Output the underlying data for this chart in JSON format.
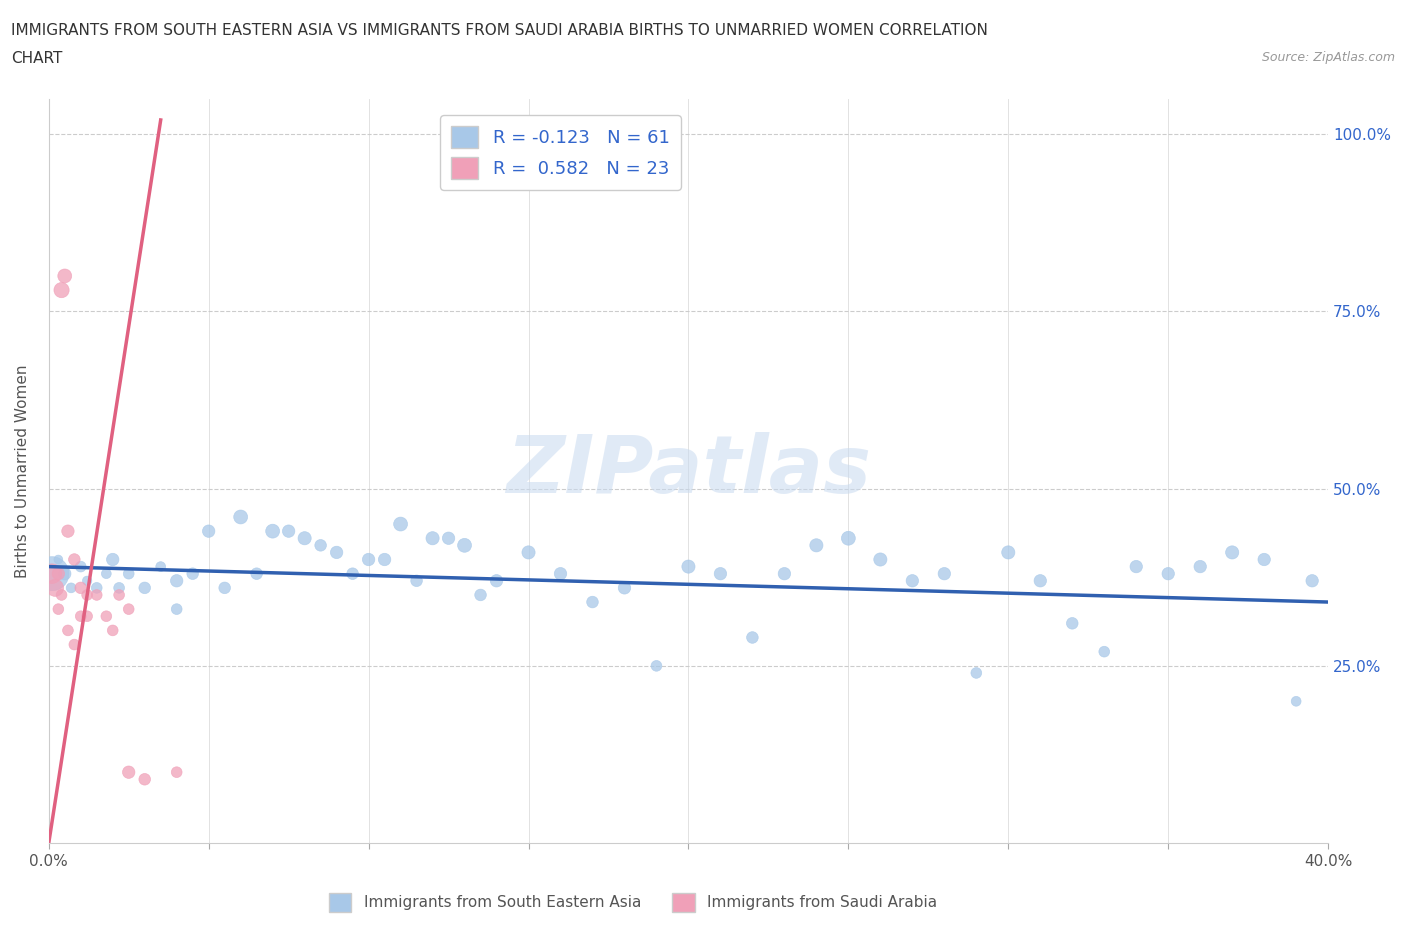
{
  "title_line1": "IMMIGRANTS FROM SOUTH EASTERN ASIA VS IMMIGRANTS FROM SAUDI ARABIA BIRTHS TO UNMARRIED WOMEN CORRELATION",
  "title_line2": "CHART",
  "source": "Source: ZipAtlas.com",
  "ylabel": "Births to Unmarried Women",
  "xlim": [
    0.0,
    0.4
  ],
  "ylim": [
    0.0,
    1.05
  ],
  "blue_color": "#a8c8e8",
  "pink_color": "#f0a0b8",
  "blue_line_color": "#3060b0",
  "pink_line_color": "#e06080",
  "watermark": "ZIPatlas",
  "blue_scatter": {
    "x": [
      0.001,
      0.003,
      0.005,
      0.007,
      0.01,
      0.012,
      0.015,
      0.018,
      0.02,
      0.022,
      0.025,
      0.03,
      0.035,
      0.04,
      0.05,
      0.06,
      0.07,
      0.08,
      0.09,
      0.1,
      0.11,
      0.12,
      0.13,
      0.14,
      0.15,
      0.16,
      0.17,
      0.18,
      0.19,
      0.2,
      0.21,
      0.22,
      0.23,
      0.24,
      0.25,
      0.26,
      0.27,
      0.28,
      0.29,
      0.3,
      0.31,
      0.32,
      0.33,
      0.34,
      0.35,
      0.36,
      0.37,
      0.38,
      0.39,
      0.395,
      0.04,
      0.045,
      0.055,
      0.065,
      0.075,
      0.085,
      0.095,
      0.105,
      0.115,
      0.125,
      0.135
    ],
    "y": [
      0.38,
      0.4,
      0.38,
      0.36,
      0.39,
      0.37,
      0.36,
      0.38,
      0.4,
      0.36,
      0.38,
      0.36,
      0.39,
      0.37,
      0.44,
      0.46,
      0.44,
      0.43,
      0.41,
      0.4,
      0.45,
      0.43,
      0.42,
      0.37,
      0.41,
      0.38,
      0.34,
      0.36,
      0.25,
      0.39,
      0.38,
      0.29,
      0.38,
      0.42,
      0.43,
      0.4,
      0.37,
      0.38,
      0.24,
      0.41,
      0.37,
      0.31,
      0.27,
      0.39,
      0.38,
      0.39,
      0.41,
      0.4,
      0.2,
      0.37,
      0.33,
      0.38,
      0.36,
      0.38,
      0.44,
      0.42,
      0.38,
      0.4,
      0.37,
      0.43,
      0.35
    ],
    "sizes": [
      600,
      40,
      80,
      50,
      60,
      45,
      60,
      50,
      80,
      60,
      60,
      70,
      50,
      80,
      80,
      100,
      100,
      90,
      80,
      80,
      100,
      90,
      100,
      80,
      90,
      80,
      70,
      80,
      60,
      90,
      80,
      70,
      80,
      90,
      100,
      90,
      80,
      80,
      60,
      90,
      80,
      70,
      60,
      80,
      80,
      80,
      90,
      80,
      50,
      80,
      60,
      70,
      70,
      70,
      80,
      70,
      70,
      80,
      70,
      80,
      70
    ]
  },
  "pink_scatter": {
    "x": [
      0.004,
      0.005,
      0.001,
      0.002,
      0.003,
      0.006,
      0.008,
      0.01,
      0.012,
      0.015,
      0.018,
      0.02,
      0.022,
      0.025,
      0.003,
      0.004,
      0.006,
      0.008,
      0.01,
      0.012,
      0.025,
      0.03,
      0.04
    ],
    "y": [
      0.78,
      0.8,
      0.38,
      0.36,
      0.38,
      0.44,
      0.4,
      0.36,
      0.32,
      0.35,
      0.32,
      0.3,
      0.35,
      0.33,
      0.33,
      0.35,
      0.3,
      0.28,
      0.32,
      0.35,
      0.1,
      0.09,
      0.1
    ],
    "sizes": [
      120,
      100,
      200,
      150,
      80,
      80,
      70,
      70,
      60,
      60,
      60,
      60,
      60,
      60,
      60,
      60,
      60,
      60,
      60,
      60,
      80,
      70,
      60
    ]
  },
  "blue_line": {
    "x0": 0.0,
    "x1": 0.4,
    "y0": 0.39,
    "y1": 0.34
  },
  "pink_line": {
    "x0": 0.0,
    "x1": 0.035,
    "y0": 0.0,
    "y1": 1.02
  }
}
